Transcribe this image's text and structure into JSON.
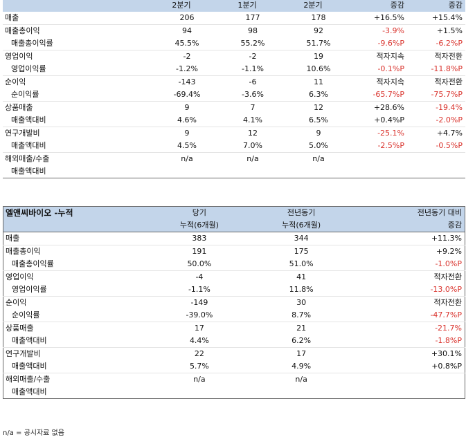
{
  "table1": {
    "header": [
      "",
      "2분기",
      "1분기",
      "2분기",
      "증감",
      "증감"
    ],
    "rows": [
      {
        "label": "매출",
        "sub": false,
        "cells": [
          {
            "v": "206"
          },
          {
            "v": "177"
          },
          {
            "v": "178"
          },
          {
            "v": "+16.5%"
          },
          {
            "v": "+15.4%"
          }
        ],
        "gap": false
      },
      {
        "label": "매출총이익",
        "sub": false,
        "cells": [
          {
            "v": "94"
          },
          {
            "v": "98"
          },
          {
            "v": "92"
          },
          {
            "v": "-3.9%",
            "red": true
          },
          {
            "v": "+1.5%"
          }
        ],
        "gap": true
      },
      {
        "label": "매출총이익률",
        "sub": true,
        "cells": [
          {
            "v": "45.5%"
          },
          {
            "v": "55.2%"
          },
          {
            "v": "51.7%"
          },
          {
            "v": "-9.6%P",
            "red": true
          },
          {
            "v": "-6.2%P",
            "red": true
          }
        ],
        "gap": false
      },
      {
        "label": "영업이익",
        "sub": false,
        "cells": [
          {
            "v": "-2"
          },
          {
            "v": "-2"
          },
          {
            "v": "19"
          },
          {
            "v": "적자지속"
          },
          {
            "v": "적자전환"
          }
        ],
        "gap": true
      },
      {
        "label": "영업이익률",
        "sub": true,
        "cells": [
          {
            "v": "-1.2%"
          },
          {
            "v": "-1.1%"
          },
          {
            "v": "10.6%"
          },
          {
            "v": "-0.1%P",
            "red": true
          },
          {
            "v": "-11.8%P",
            "red": true
          }
        ],
        "gap": false
      },
      {
        "label": "순이익",
        "sub": false,
        "cells": [
          {
            "v": "-143"
          },
          {
            "v": "-6"
          },
          {
            "v": "11"
          },
          {
            "v": "적자지속"
          },
          {
            "v": "적자전환"
          }
        ],
        "gap": true
      },
      {
        "label": "순이익률",
        "sub": true,
        "cells": [
          {
            "v": "-69.4%"
          },
          {
            "v": "-3.6%"
          },
          {
            "v": "6.3%"
          },
          {
            "v": "-65.7%P",
            "red": true
          },
          {
            "v": "-75.7%P",
            "red": true
          }
        ],
        "gap": false
      },
      {
        "label": "상품매출",
        "sub": false,
        "cells": [
          {
            "v": "9"
          },
          {
            "v": "7"
          },
          {
            "v": "12"
          },
          {
            "v": "+28.6%"
          },
          {
            "v": "-19.4%",
            "red": true
          }
        ],
        "gap": true
      },
      {
        "label": "매출액대비",
        "sub": true,
        "cells": [
          {
            "v": "4.6%"
          },
          {
            "v": "4.1%"
          },
          {
            "v": "6.5%"
          },
          {
            "v": "+0.4%P"
          },
          {
            "v": "-2.0%P",
            "red": true
          }
        ],
        "gap": false
      },
      {
        "label": "연구개발비",
        "sub": false,
        "cells": [
          {
            "v": "9"
          },
          {
            "v": "12"
          },
          {
            "v": "9"
          },
          {
            "v": "-25.1%",
            "red": true
          },
          {
            "v": "+4.7%"
          }
        ],
        "gap": true
      },
      {
        "label": "매출액대비",
        "sub": true,
        "cells": [
          {
            "v": "4.5%"
          },
          {
            "v": "7.0%"
          },
          {
            "v": "5.0%"
          },
          {
            "v": "-2.5%P",
            "red": true
          },
          {
            "v": "-0.5%P",
            "red": true
          }
        ],
        "gap": false
      },
      {
        "label": "해외매출/수출",
        "sub": false,
        "cells": [
          {
            "v": "n/a"
          },
          {
            "v": "n/a"
          },
          {
            "v": "n/a"
          },
          {
            "v": ""
          },
          {
            "v": ""
          }
        ],
        "gap": true
      },
      {
        "label": "매출액대비",
        "sub": true,
        "cells": [
          {
            "v": ""
          },
          {
            "v": ""
          },
          {
            "v": ""
          },
          {
            "v": ""
          },
          {
            "v": ""
          }
        ],
        "gap": false
      }
    ]
  },
  "table2": {
    "title": "엘앤씨바이오 -누적",
    "header1": [
      "당기",
      "전년동기",
      "전년동기 대비"
    ],
    "header2": [
      "누적(6개월)",
      "누적(6개월)",
      "증감"
    ],
    "rows": [
      {
        "label": "매출",
        "sub": false,
        "cells": [
          {
            "v": "383"
          },
          {
            "v": "344"
          },
          {
            "v": "+11.3%"
          }
        ],
        "gap": false
      },
      {
        "label": "매출총이익",
        "sub": false,
        "cells": [
          {
            "v": "191"
          },
          {
            "v": "175"
          },
          {
            "v": "+9.2%"
          }
        ],
        "gap": true
      },
      {
        "label": "매출총이익률",
        "sub": true,
        "cells": [
          {
            "v": "50.0%"
          },
          {
            "v": "51.0%"
          },
          {
            "v": "-1.0%P",
            "red": true
          }
        ],
        "gap": false
      },
      {
        "label": "영업이익",
        "sub": false,
        "cells": [
          {
            "v": "-4"
          },
          {
            "v": "41"
          },
          {
            "v": "적자전환"
          }
        ],
        "gap": true
      },
      {
        "label": "영업이익률",
        "sub": true,
        "cells": [
          {
            "v": "-1.1%"
          },
          {
            "v": "11.8%"
          },
          {
            "v": "-13.0%P",
            "red": true
          }
        ],
        "gap": false
      },
      {
        "label": "순이익",
        "sub": false,
        "cells": [
          {
            "v": "-149"
          },
          {
            "v": "30"
          },
          {
            "v": "적자전환"
          }
        ],
        "gap": true
      },
      {
        "label": "순이익률",
        "sub": true,
        "cells": [
          {
            "v": "-39.0%"
          },
          {
            "v": "8.7%"
          },
          {
            "v": "-47.7%P",
            "red": true
          }
        ],
        "gap": false
      },
      {
        "label": "상품매출",
        "sub": false,
        "cells": [
          {
            "v": "17"
          },
          {
            "v": "21"
          },
          {
            "v": "-21.7%",
            "red": true
          }
        ],
        "gap": true
      },
      {
        "label": "매출액대비",
        "sub": true,
        "cells": [
          {
            "v": "4.4%"
          },
          {
            "v": "6.2%"
          },
          {
            "v": "-1.8%P",
            "red": true
          }
        ],
        "gap": false
      },
      {
        "label": "연구개발비",
        "sub": false,
        "cells": [
          {
            "v": "22"
          },
          {
            "v": "17"
          },
          {
            "v": "+30.1%"
          }
        ],
        "gap": true
      },
      {
        "label": "매출액대비",
        "sub": true,
        "cells": [
          {
            "v": "5.7%"
          },
          {
            "v": "4.9%"
          },
          {
            "v": "+0.8%P"
          }
        ],
        "gap": false
      },
      {
        "label": "해외매출/수출",
        "sub": false,
        "cells": [
          {
            "v": "n/a"
          },
          {
            "v": "n/a"
          },
          {
            "v": ""
          }
        ],
        "gap": true
      },
      {
        "label": "매출액대비",
        "sub": true,
        "cells": [
          {
            "v": ""
          },
          {
            "v": ""
          },
          {
            "v": ""
          }
        ],
        "gap": false
      }
    ]
  },
  "footnote": "n/a = 공시자료 없음",
  "colors": {
    "header_bg": "#c3d5ea",
    "negative": "#d9312b"
  }
}
